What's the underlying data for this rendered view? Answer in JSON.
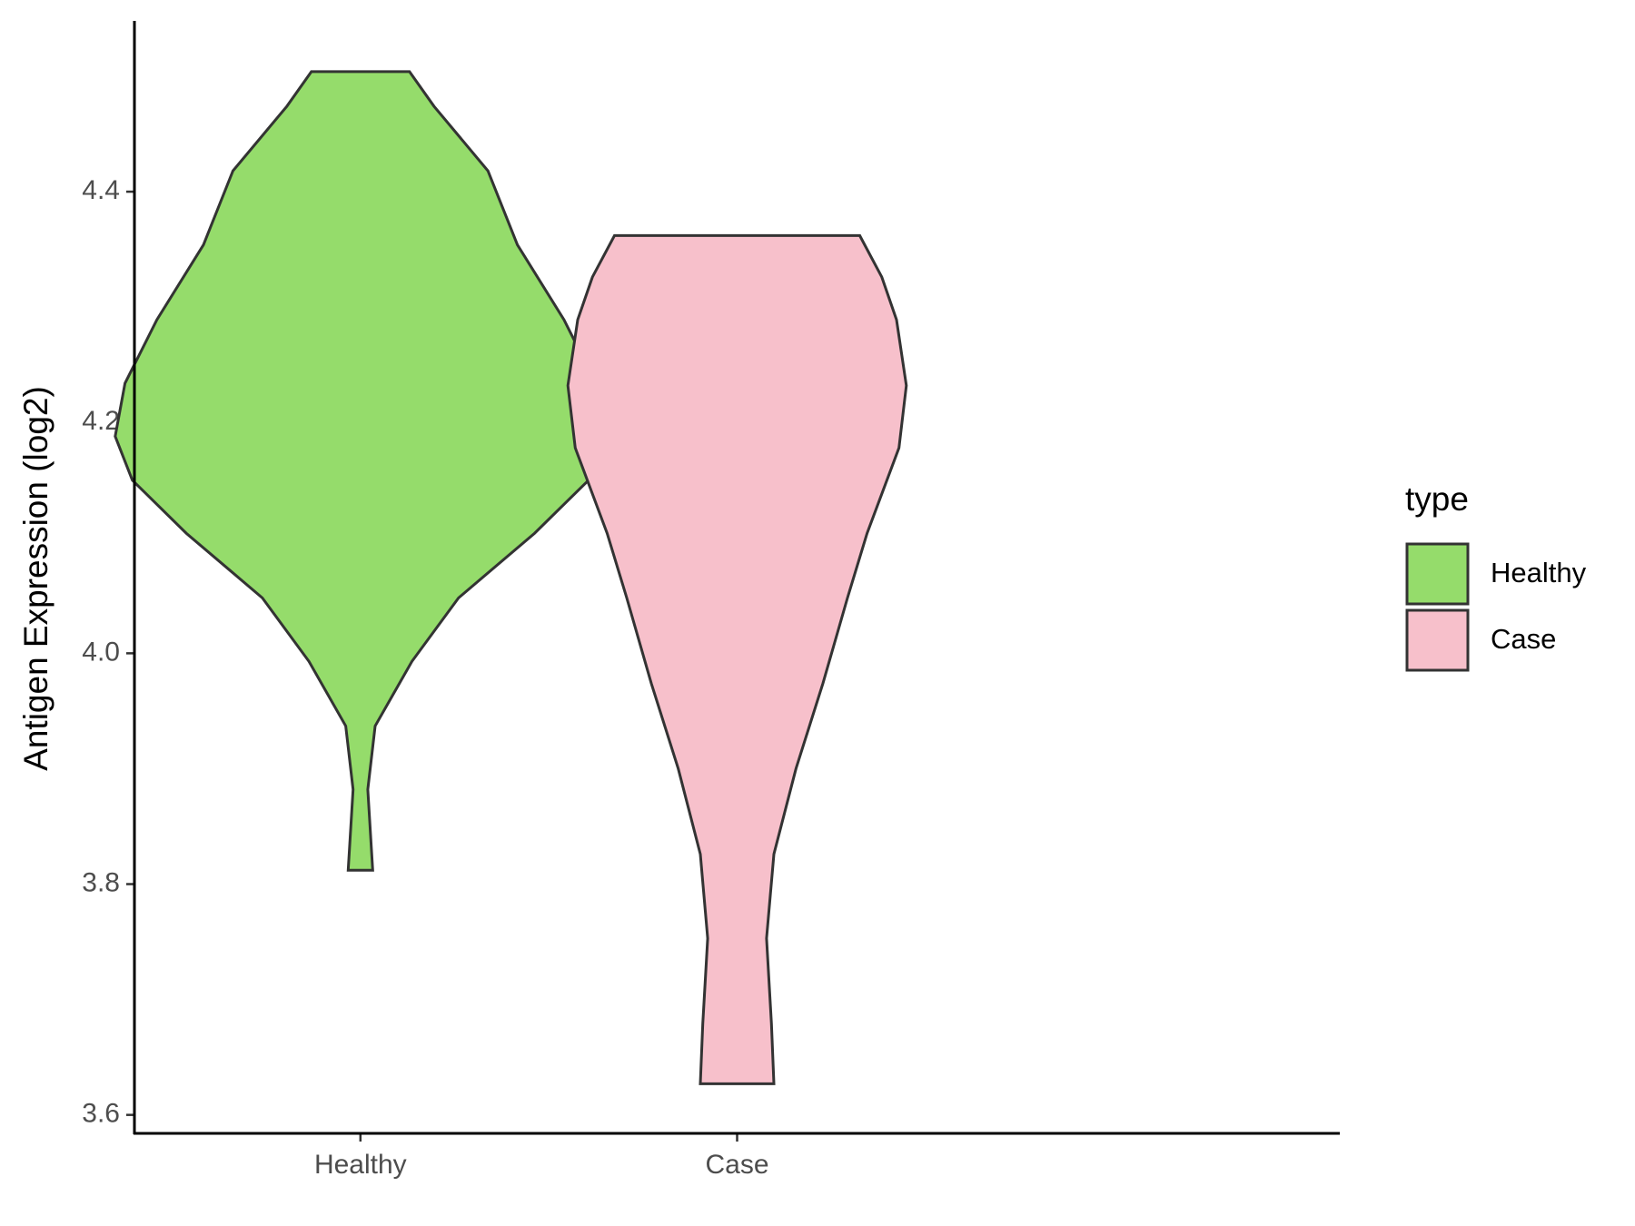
{
  "chart_data": {
    "type": "violin",
    "y_label": "Antigen Expression (log2)",
    "legend_title": "type",
    "categories": [
      "Healthy",
      "Case"
    ],
    "series": [
      {
        "name": "Healthy",
        "color": "#95dc6b",
        "y": [
          4.504,
          4.474,
          4.418,
          4.354,
          4.289,
          4.234,
          4.188,
          4.15,
          4.104,
          4.048,
          3.993,
          3.937,
          3.882,
          3.812
        ],
        "density": [
          0.2,
          0.3,
          0.52,
          0.64,
          0.83,
          0.96,
          1.0,
          0.93,
          0.71,
          0.4,
          0.21,
          0.06,
          0.03,
          0.05
        ]
      },
      {
        "name": "Case",
        "color": "#f7c0cb",
        "y": [
          4.362,
          4.326,
          4.289,
          4.232,
          4.178,
          4.104,
          4.048,
          3.974,
          3.9,
          3.826,
          3.753,
          3.679,
          3.627
        ],
        "density": [
          0.5,
          0.59,
          0.65,
          0.69,
          0.66,
          0.53,
          0.45,
          0.35,
          0.24,
          0.15,
          0.12,
          0.14,
          0.15
        ]
      }
    ],
    "ylim": [
      3.584,
      4.548
    ],
    "yticks": [
      3.6,
      3.8,
      {
        "value": 4,
        "label": "4.0"
      },
      4.2,
      4.4
    ],
    "legend_position": "right"
  }
}
